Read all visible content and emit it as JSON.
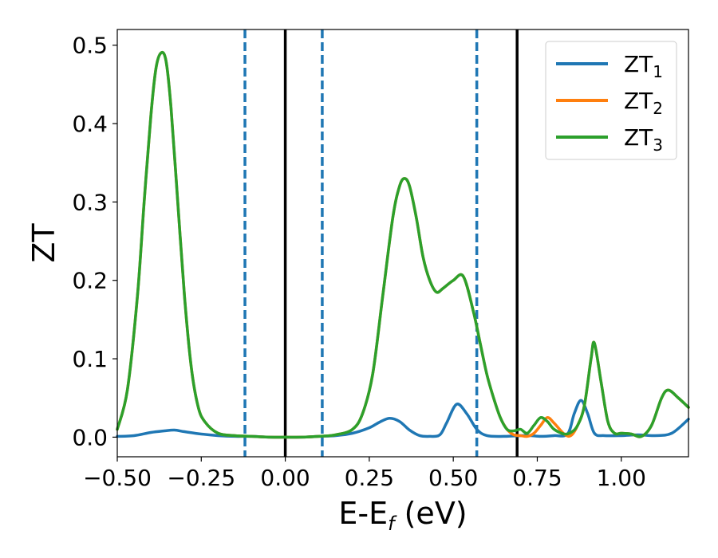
{
  "chart_data": {
    "type": "line",
    "xlabel": "E-E",
    "xlabel_sub": "f",
    "xlabel_unit": " (eV)",
    "ylabel": "ZT",
    "xlim": [
      -0.5,
      1.2
    ],
    "ylim": [
      -0.025,
      0.52
    ],
    "xticks": [
      -0.5,
      -0.25,
      0.0,
      0.25,
      0.5,
      0.75,
      1.0
    ],
    "xtick_labels": [
      "−0.50",
      "−0.25",
      "0.00",
      "0.25",
      "0.50",
      "0.75",
      "1.00"
    ],
    "yticks": [
      0.0,
      0.1,
      0.2,
      0.3,
      0.4,
      0.5
    ],
    "ytick_labels": [
      "0.0",
      "0.1",
      "0.2",
      "0.3",
      "0.4",
      "0.5"
    ],
    "grid": false,
    "legend_position": "top-right",
    "series": [
      {
        "name": "ZT",
        "name_sub": "1",
        "color": "#1f77b4",
        "x": [
          -0.5,
          -0.45,
          -0.4,
          -0.36,
          -0.33,
          -0.3,
          -0.25,
          -0.2,
          -0.15,
          -0.1,
          -0.05,
          0.0,
          0.05,
          0.1,
          0.15,
          0.2,
          0.25,
          0.28,
          0.31,
          0.34,
          0.37,
          0.4,
          0.43,
          0.46,
          0.48,
          0.51,
          0.54,
          0.57,
          0.6,
          0.65,
          0.7,
          0.73,
          0.76,
          0.8,
          0.84,
          0.86,
          0.88,
          0.9,
          0.92,
          0.95,
          1.0,
          1.05,
          1.1,
          1.15,
          1.2
        ],
        "y": [
          0.001,
          0.002,
          0.006,
          0.008,
          0.009,
          0.007,
          0.004,
          0.002,
          0.001,
          0.001,
          0.0,
          0.0,
          0.0,
          0.001,
          0.002,
          0.005,
          0.012,
          0.019,
          0.024,
          0.02,
          0.009,
          0.002,
          0.001,
          0.003,
          0.018,
          0.042,
          0.03,
          0.01,
          0.002,
          0.001,
          0.002,
          0.002,
          0.001,
          0.002,
          0.004,
          0.03,
          0.047,
          0.03,
          0.005,
          0.002,
          0.002,
          0.003,
          0.002,
          0.005,
          0.023
        ]
      },
      {
        "name": "ZT",
        "name_sub": "2",
        "color": "#ff7f0e",
        "x": [
          -0.5,
          -0.47,
          -0.44,
          -0.42,
          -0.4,
          -0.385,
          -0.37,
          -0.355,
          -0.34,
          -0.32,
          -0.3,
          -0.28,
          -0.26,
          -0.24,
          -0.2,
          -0.15,
          -0.1,
          -0.05,
          0.0,
          0.05,
          0.1,
          0.15,
          0.2,
          0.23,
          0.26,
          0.29,
          0.32,
          0.34,
          0.355,
          0.37,
          0.39,
          0.41,
          0.43,
          0.45,
          0.47,
          0.5,
          0.53,
          0.56,
          0.58,
          0.6,
          0.62,
          0.64,
          0.66,
          0.68,
          0.7,
          0.72,
          0.74,
          0.76,
          0.78,
          0.8,
          0.83,
          0.85,
          0.87,
          0.89,
          0.91,
          0.92,
          0.94,
          0.96,
          0.98,
          1.0,
          1.03,
          1.06,
          1.09,
          1.12,
          1.14,
          1.17,
          1.2
        ],
        "y": [
          0.01,
          0.06,
          0.18,
          0.3,
          0.41,
          0.47,
          0.49,
          0.48,
          0.42,
          0.3,
          0.18,
          0.09,
          0.04,
          0.02,
          0.005,
          0.002,
          0.001,
          0.0,
          0.0,
          0.0,
          0.001,
          0.003,
          0.01,
          0.03,
          0.08,
          0.18,
          0.28,
          0.32,
          0.33,
          0.32,
          0.28,
          0.23,
          0.2,
          0.185,
          0.19,
          0.2,
          0.205,
          0.16,
          0.12,
          0.08,
          0.05,
          0.025,
          0.01,
          0.003,
          0.002,
          0.001,
          0.005,
          0.015,
          0.025,
          0.018,
          0.004,
          0.002,
          0.015,
          0.04,
          0.1,
          0.12,
          0.07,
          0.02,
          0.005,
          0.005,
          0.004,
          0.001,
          0.015,
          0.05,
          0.06,
          0.05,
          0.038
        ]
      },
      {
        "name": "ZT",
        "name_sub": "3",
        "color": "#2ca02c",
        "x": [
          -0.5,
          -0.47,
          -0.44,
          -0.42,
          -0.4,
          -0.385,
          -0.37,
          -0.355,
          -0.34,
          -0.32,
          -0.3,
          -0.28,
          -0.26,
          -0.24,
          -0.2,
          -0.15,
          -0.1,
          -0.05,
          0.0,
          0.05,
          0.1,
          0.15,
          0.2,
          0.23,
          0.26,
          0.29,
          0.32,
          0.34,
          0.355,
          0.37,
          0.39,
          0.41,
          0.43,
          0.45,
          0.47,
          0.5,
          0.53,
          0.56,
          0.58,
          0.6,
          0.62,
          0.64,
          0.66,
          0.68,
          0.7,
          0.72,
          0.74,
          0.76,
          0.78,
          0.8,
          0.83,
          0.85,
          0.87,
          0.89,
          0.91,
          0.92,
          0.94,
          0.96,
          0.98,
          1.0,
          1.03,
          1.06,
          1.09,
          1.12,
          1.14,
          1.17,
          1.2
        ],
        "y": [
          0.01,
          0.06,
          0.18,
          0.3,
          0.41,
          0.47,
          0.49,
          0.48,
          0.42,
          0.3,
          0.18,
          0.09,
          0.04,
          0.02,
          0.005,
          0.002,
          0.001,
          0.0,
          0.0,
          0.0,
          0.001,
          0.003,
          0.01,
          0.03,
          0.08,
          0.18,
          0.28,
          0.32,
          0.33,
          0.32,
          0.28,
          0.23,
          0.2,
          0.185,
          0.19,
          0.2,
          0.205,
          0.16,
          0.12,
          0.08,
          0.05,
          0.025,
          0.01,
          0.008,
          0.01,
          0.005,
          0.015,
          0.025,
          0.02,
          0.01,
          0.004,
          0.006,
          0.015,
          0.04,
          0.1,
          0.12,
          0.07,
          0.02,
          0.005,
          0.005,
          0.004,
          0.001,
          0.015,
          0.05,
          0.06,
          0.05,
          0.038
        ]
      }
    ],
    "vlines": [
      {
        "x": -0.12,
        "style": "dashed",
        "color": "#1f77b4"
      },
      {
        "x": 0.0,
        "style": "solid",
        "color": "#000000"
      },
      {
        "x": 0.11,
        "style": "dashed",
        "color": "#1f77b4"
      },
      {
        "x": 0.57,
        "style": "dashed",
        "color": "#1f77b4"
      },
      {
        "x": 0.69,
        "style": "solid",
        "color": "#000000"
      }
    ]
  }
}
